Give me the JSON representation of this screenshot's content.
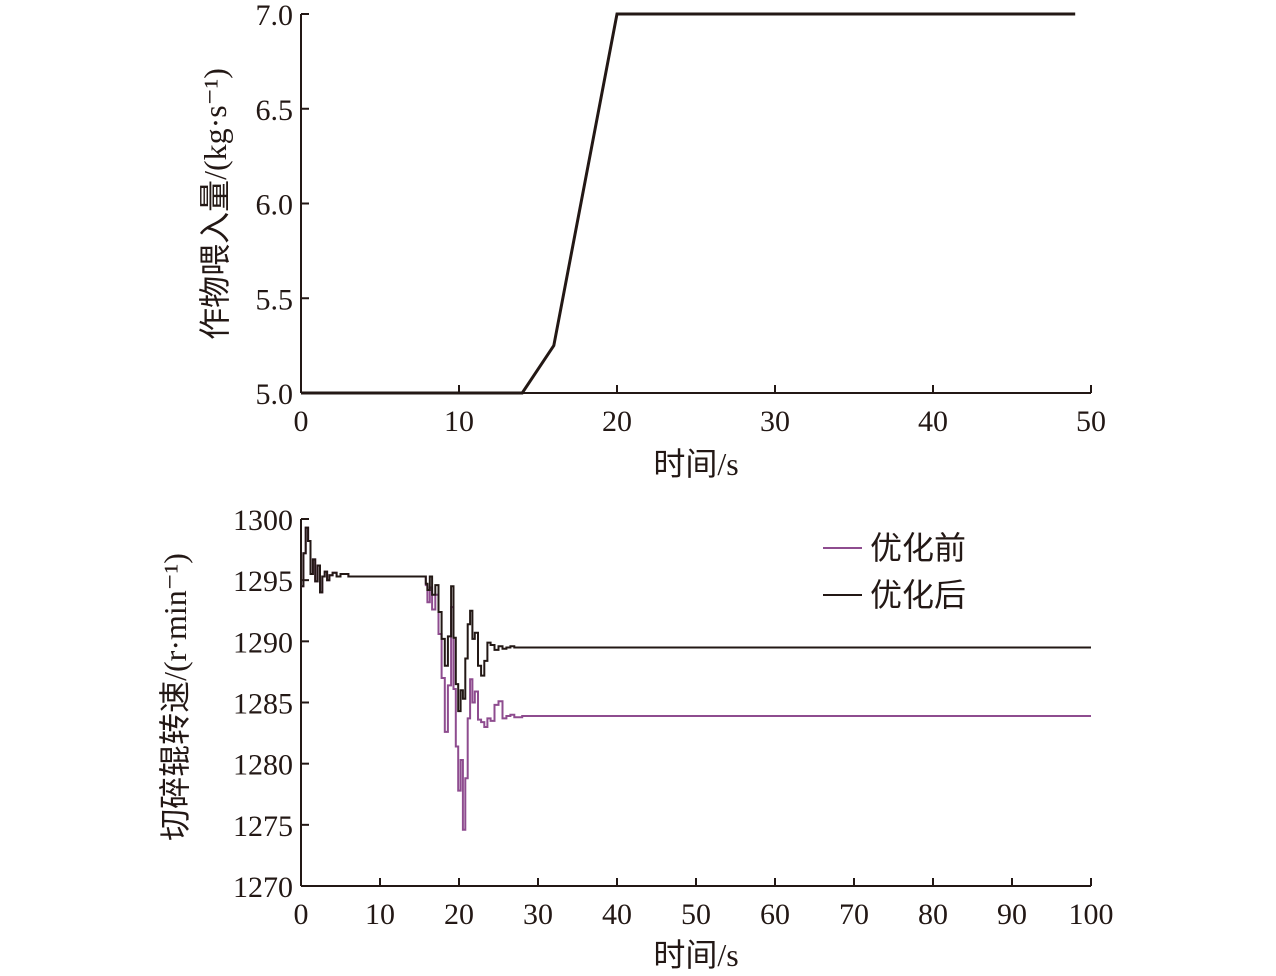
{
  "chart_data": [
    {
      "type": "line",
      "xlabel": "时间/s",
      "ylabel": "作物喂入量/(kg·s⁻¹)",
      "xlim": [
        0,
        50
      ],
      "ylim": [
        5.0,
        7.0
      ],
      "xticks": [
        "0",
        "10",
        "20",
        "30",
        "40",
        "50"
      ],
      "yticks": [
        "5.0",
        "5.5",
        "6.0",
        "6.5",
        "7.0"
      ],
      "grid": false,
      "series": [
        {
          "color": "#231815",
          "x": [
            0,
            14,
            16,
            20,
            49
          ],
          "y": [
            5.0,
            5.0,
            5.25,
            7.0,
            7.0
          ]
        }
      ]
    },
    {
      "type": "line",
      "xlabel": "时间/s",
      "ylabel": "切碎辊转速/(r·min⁻¹)",
      "xlim": [
        0,
        100
      ],
      "ylim": [
        1270,
        1300
      ],
      "xticks": [
        "0",
        "10",
        "20",
        "30",
        "40",
        "50",
        "60",
        "70",
        "80",
        "90",
        "100"
      ],
      "yticks": [
        "1270",
        "1275",
        "1280",
        "1285",
        "1290",
        "1295",
        "1300"
      ],
      "grid": false,
      "legend_position": "top-right",
      "series": [
        {
          "name": "优化前",
          "color": "#8e4c8f",
          "x": [
            0,
            0.3,
            0.6,
            0.9,
            1.2,
            1.5,
            1.8,
            2.1,
            2.4,
            2.7,
            3.0,
            3.3,
            3.6,
            4.0,
            4.5,
            5.0,
            6.0,
            8.0,
            10,
            12,
            14,
            15.8,
            16.0,
            16.3,
            16.6,
            17.0,
            17.4,
            17.8,
            18.2,
            18.6,
            19.0,
            19.3,
            19.6,
            19.9,
            20.2,
            20.5,
            20.8,
            21.1,
            21.4,
            21.7,
            22.0,
            22.4,
            22.8,
            23.2,
            23.6,
            24.0,
            24.5,
            25.0,
            25.5,
            26.0,
            26.5,
            27.0,
            28,
            30,
            35,
            40,
            50,
            60,
            70,
            80,
            90,
            100
          ],
          "y": [
            1294.5,
            1297.2,
            1299.3,
            1298.2,
            1295.5,
            1296.7,
            1294.9,
            1296.2,
            1294.0,
            1295.3,
            1295.7,
            1295.0,
            1295.4,
            1295.6,
            1295.3,
            1295.5,
            1295.3,
            1295.3,
            1295.3,
            1295.3,
            1295.3,
            1294.6,
            1293.2,
            1294.4,
            1292.6,
            1293.8,
            1290.6,
            1287.0,
            1282.6,
            1286.4,
            1292.8,
            1286.1,
            1281.4,
            1277.8,
            1280.3,
            1274.6,
            1278.8,
            1283.7,
            1286.9,
            1285.0,
            1285.9,
            1283.6,
            1283.4,
            1283.0,
            1283.7,
            1283.5,
            1284.8,
            1285.1,
            1283.7,
            1283.9,
            1284.0,
            1283.8,
            1283.9,
            1283.9,
            1283.9,
            1283.9,
            1283.9,
            1283.9,
            1283.9,
            1283.9,
            1283.9,
            1283.9
          ]
        },
        {
          "name": "优化后",
          "color": "#231815",
          "x": [
            0,
            0.3,
            0.6,
            0.9,
            1.2,
            1.5,
            1.8,
            2.1,
            2.4,
            2.7,
            3.0,
            3.3,
            3.6,
            4.0,
            4.5,
            5.0,
            6.0,
            8.0,
            10,
            12,
            14,
            15.8,
            16.0,
            16.3,
            16.6,
            17.0,
            17.4,
            17.8,
            18.2,
            18.6,
            19.0,
            19.3,
            19.6,
            19.9,
            20.2,
            20.5,
            20.8,
            21.1,
            21.4,
            21.7,
            22.0,
            22.4,
            22.8,
            23.2,
            23.6,
            24.0,
            24.5,
            25.0,
            25.5,
            26.0,
            26.5,
            27.0,
            28,
            30,
            35,
            40,
            50,
            60,
            70,
            80,
            90,
            100
          ],
          "y": [
            1294.5,
            1297.2,
            1299.3,
            1298.2,
            1295.5,
            1296.7,
            1294.9,
            1296.2,
            1294.0,
            1295.3,
            1295.7,
            1295.0,
            1295.4,
            1295.6,
            1295.3,
            1295.5,
            1295.3,
            1295.3,
            1295.3,
            1295.3,
            1295.3,
            1294.7,
            1294.2,
            1295.3,
            1293.8,
            1294.6,
            1292.4,
            1290.2,
            1288.0,
            1290.4,
            1294.5,
            1290.3,
            1286.5,
            1284.3,
            1286.0,
            1285.3,
            1288.6,
            1291.4,
            1292.5,
            1290.2,
            1290.7,
            1288.0,
            1287.2,
            1288.4,
            1289.9,
            1289.7,
            1289.3,
            1289.6,
            1289.4,
            1289.5,
            1289.6,
            1289.5,
            1289.5,
            1289.5,
            1289.5,
            1289.5,
            1289.5,
            1289.5,
            1289.5,
            1289.5,
            1289.5,
            1289.5
          ]
        }
      ]
    }
  ]
}
